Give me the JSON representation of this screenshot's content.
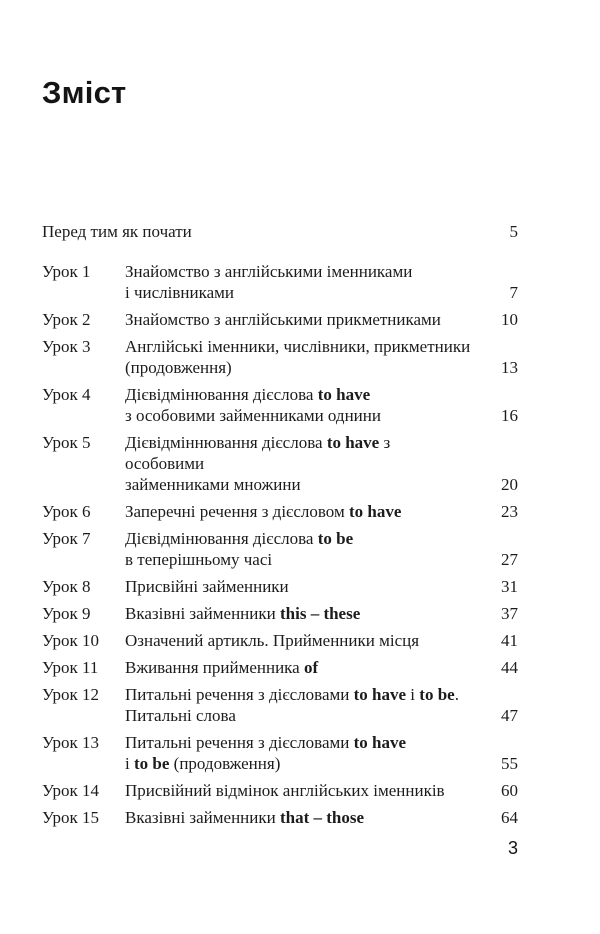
{
  "page": {
    "title": "Зміст",
    "folio": "3"
  },
  "toc": {
    "entries": [
      {
        "label": "",
        "intro": true,
        "page": "5",
        "lines": [
          [
            {
              "t": "Перед тим як почати"
            }
          ]
        ]
      },
      {
        "label": "Урок 1",
        "page": "7",
        "lines": [
          [
            {
              "t": "Знайомство з англійськими іменниками"
            }
          ],
          [
            {
              "t": "і числівниками"
            }
          ]
        ]
      },
      {
        "label": "Урок 2",
        "page": "10",
        "lines": [
          [
            {
              "t": "Знайомство з англійськими прикметниками"
            }
          ]
        ]
      },
      {
        "label": "Урок 3",
        "page": "13",
        "lines": [
          [
            {
              "t": "Англійські іменники, числівники, прикметники"
            }
          ],
          [
            {
              "t": "(продовження)"
            }
          ]
        ]
      },
      {
        "label": "Урок 4",
        "page": "16",
        "lines": [
          [
            {
              "t": "Дієвідмінювання дієслова "
            },
            {
              "t": "to have",
              "b": true
            }
          ],
          [
            {
              "t": "з особовими займенниками однини"
            }
          ]
        ]
      },
      {
        "label": "Урок 5",
        "page": "20",
        "lines": [
          [
            {
              "t": "Дієвідміннювання дієслова "
            },
            {
              "t": "to have",
              "b": true
            },
            {
              "t": " з особовими"
            }
          ],
          [
            {
              "t": "займенниками множини"
            }
          ]
        ]
      },
      {
        "label": "Урок 6",
        "page": "23",
        "lines": [
          [
            {
              "t": "Заперечні речення з дієсловом "
            },
            {
              "t": "to have",
              "b": true
            }
          ]
        ]
      },
      {
        "label": "Урок 7",
        "page": "27",
        "lines": [
          [
            {
              "t": "Дієвідмінювання дієслова "
            },
            {
              "t": "to be",
              "b": true
            }
          ],
          [
            {
              "t": "в теперішньому часі"
            }
          ]
        ]
      },
      {
        "label": "Урок 8",
        "page": "31",
        "lines": [
          [
            {
              "t": "Присвійні займенники"
            }
          ]
        ]
      },
      {
        "label": "Урок 9",
        "page": "37",
        "lines": [
          [
            {
              "t": "Вказівні займенники "
            },
            {
              "t": "this – these",
              "b": true
            }
          ]
        ]
      },
      {
        "label": "Урок 10",
        "page": "41",
        "lines": [
          [
            {
              "t": "Означений артикль. Прийменники місця"
            }
          ]
        ]
      },
      {
        "label": "Урок 11",
        "page": "44",
        "lines": [
          [
            {
              "t": "Вживання прийменника "
            },
            {
              "t": "of",
              "b": true
            }
          ]
        ]
      },
      {
        "label": "Урок 12",
        "page": "47",
        "lines": [
          [
            {
              "t": "Питальні речення з дієсловами "
            },
            {
              "t": "to have",
              "b": true
            },
            {
              "t": " і "
            },
            {
              "t": "to be",
              "b": true
            },
            {
              "t": "."
            }
          ],
          [
            {
              "t": "Питальні слова"
            }
          ]
        ]
      },
      {
        "label": "Урок 13",
        "page": "55",
        "lines": [
          [
            {
              "t": "Питальні речення з дієсловами "
            },
            {
              "t": "to have",
              "b": true
            }
          ],
          [
            {
              "t": "і "
            },
            {
              "t": "to be",
              "b": true
            },
            {
              "t": " (продовження)"
            }
          ]
        ]
      },
      {
        "label": "Урок 14",
        "page": "60",
        "lines": [
          [
            {
              "t": "Присвійний відмінок англійських іменників"
            }
          ]
        ]
      },
      {
        "label": "Урок 15",
        "page": "64",
        "lines": [
          [
            {
              "t": "Вказівні займенники "
            },
            {
              "t": "that – those",
              "b": true
            }
          ]
        ]
      }
    ]
  }
}
